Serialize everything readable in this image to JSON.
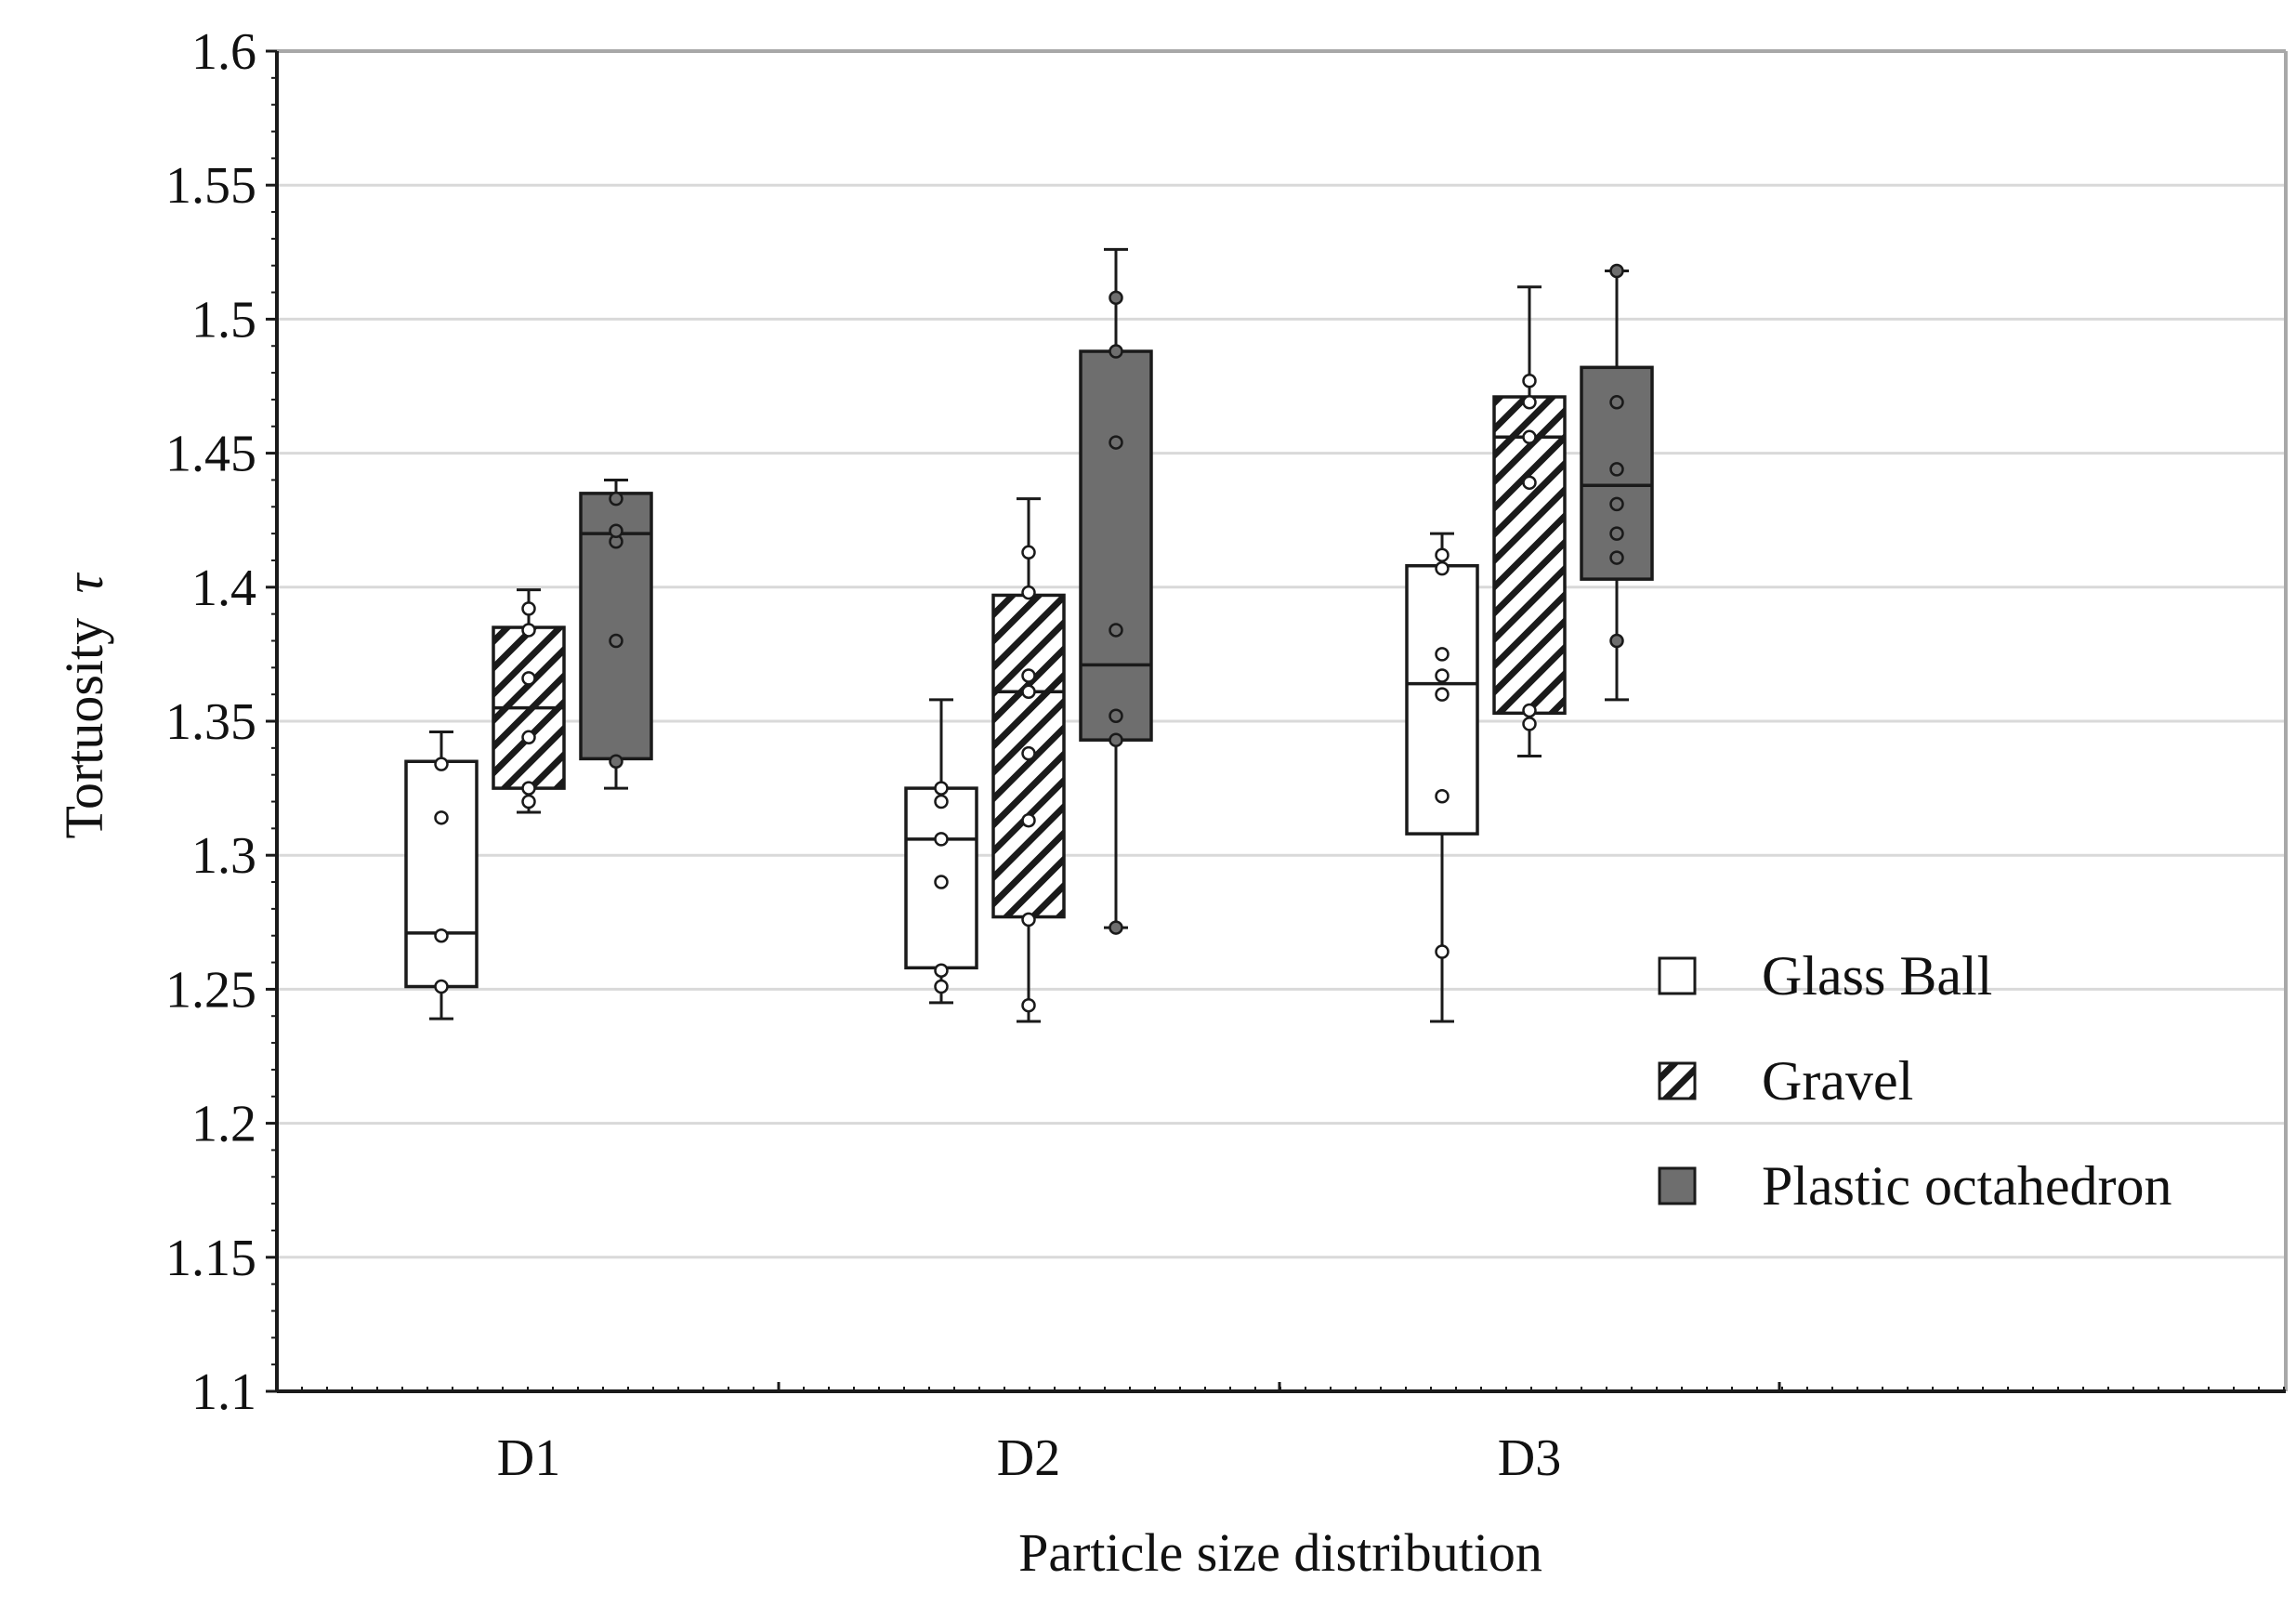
{
  "colors": {
    "glass_fill": "#ffffff",
    "gravel_fill": "hatch",
    "plastic_fill": "#6e6e6e",
    "stroke": "#1a1a1a",
    "grid": "#d9d9d9",
    "frame_light": "#a8a8a8"
  },
  "chart_data": {
    "type": "box",
    "title": "",
    "xlabel": "Particle size distribution",
    "ylabel": "Tortuosity",
    "ylabel_symbol": "τ",
    "ylim": [
      1.1,
      1.6
    ],
    "yticks": [
      "1.1",
      "1.15",
      "1.2",
      "1.25",
      "1.3",
      "1.35",
      "1.4",
      "1.45",
      "1.5",
      "1.55",
      "1.6"
    ],
    "categories": [
      "D1",
      "D2",
      "D3"
    ],
    "series": [
      {
        "name": "Glass Ball",
        "fill": "white",
        "boxes": [
          {
            "category": "D1",
            "whisker_low": 1.239,
            "q1": 1.251,
            "median": 1.271,
            "q3": 1.335,
            "whisker_high": 1.346,
            "points": [
              1.251,
              1.27,
              1.314,
              1.334
            ]
          },
          {
            "category": "D2",
            "whisker_low": 1.245,
            "q1": 1.258,
            "median": 1.306,
            "q3": 1.325,
            "whisker_high": 1.358,
            "points": [
              1.251,
              1.257,
              1.29,
              1.306,
              1.32,
              1.325
            ]
          },
          {
            "category": "D3",
            "whisker_low": 1.238,
            "q1": 1.308,
            "median": 1.364,
            "q3": 1.408,
            "whisker_high": 1.42,
            "points": [
              1.264,
              1.322,
              1.36,
              1.367,
              1.375,
              1.407,
              1.412
            ]
          }
        ]
      },
      {
        "name": "Gravel",
        "fill": "hatch",
        "boxes": [
          {
            "category": "D1",
            "whisker_low": 1.316,
            "q1": 1.325,
            "median": 1.355,
            "q3": 1.385,
            "whisker_high": 1.399,
            "points": [
              1.32,
              1.325,
              1.344,
              1.366,
              1.384,
              1.392
            ]
          },
          {
            "category": "D2",
            "whisker_low": 1.238,
            "q1": 1.277,
            "median": 1.361,
            "q3": 1.397,
            "whisker_high": 1.433,
            "points": [
              1.244,
              1.276,
              1.313,
              1.338,
              1.361,
              1.367,
              1.398,
              1.413
            ]
          },
          {
            "category": "D3",
            "whisker_low": 1.337,
            "q1": 1.353,
            "median": 1.456,
            "q3": 1.471,
            "whisker_high": 1.512,
            "points": [
              1.349,
              1.354,
              1.439,
              1.456,
              1.469,
              1.477
            ]
          }
        ]
      },
      {
        "name": "Plastic octahedron",
        "fill": "gray",
        "boxes": [
          {
            "category": "D1",
            "whisker_low": 1.325,
            "q1": 1.336,
            "median": 1.42,
            "q3": 1.435,
            "whisker_high": 1.44,
            "points": [
              1.335,
              1.38,
              1.417,
              1.421,
              1.433
            ]
          },
          {
            "category": "D2",
            "whisker_low": 1.273,
            "q1": 1.343,
            "median": 1.371,
            "q3": 1.488,
            "whisker_high": 1.526,
            "points": [
              1.273,
              1.343,
              1.352,
              1.384,
              1.454,
              1.488,
              1.508
            ]
          },
          {
            "category": "D3",
            "whisker_low": 1.358,
            "q1": 1.403,
            "median": 1.438,
            "q3": 1.482,
            "whisker_high": 1.518,
            "points": [
              1.38,
              1.411,
              1.42,
              1.431,
              1.444,
              1.469,
              1.518
            ]
          }
        ]
      }
    ],
    "legend": {
      "position": "bottom-right",
      "entries": [
        "Glass Ball",
        "Gravel",
        "Plastic octahedron"
      ]
    },
    "grid": true
  }
}
